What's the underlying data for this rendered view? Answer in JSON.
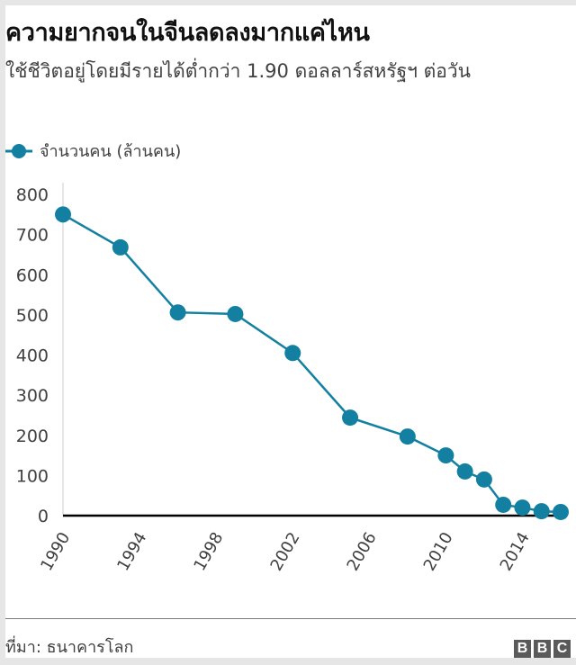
{
  "header": {
    "title": "ความยากจนในจีนลดลงมากแค่ไหน",
    "subtitle": "ใช้ชีวิตอยู่โดยมีรายได้ต่ำกว่า 1.90 ดอลลาร์สหรัฐฯ ต่อวัน"
  },
  "legend": {
    "label": "จำนวนคน (ล้านคน)",
    "color": "#1380a1"
  },
  "footer": {
    "source": "ที่มา: ธนาคารโลก",
    "logo_letters": [
      "B",
      "B",
      "C"
    ]
  },
  "colors": {
    "line": "#1380a1",
    "axis": "#000000",
    "text": "#404040",
    "title": "#111111"
  },
  "chart_data": {
    "type": "line",
    "title": "ความยากจนในจีนลดลงมากแค่ไหน",
    "subtitle": "ใช้ชีวิตอยู่โดยมีรายได้ต่ำกว่า 1.90 ดอลลาร์สหรัฐฯ ต่อวัน",
    "xlabel": "",
    "ylabel": "",
    "x": [
      1990,
      1993,
      1996,
      1999,
      2002,
      2005,
      2008,
      2010,
      2011,
      2012,
      2013,
      2014,
      2015,
      2016
    ],
    "series": [
      {
        "name": "จำนวนคน (ล้านคน)",
        "values": [
          750,
          668,
          506,
          502,
          405,
          244,
          197,
          150,
          110,
          90,
          27,
          20,
          11,
          9
        ]
      }
    ],
    "y_ticks": [
      0,
      100,
      200,
      300,
      400,
      500,
      600,
      700,
      800
    ],
    "x_ticks": [
      1990,
      1994,
      1998,
      2002,
      2006,
      2010,
      2014
    ],
    "ylim": [
      0,
      800
    ],
    "xlim": [
      1990,
      2016
    ],
    "grid": false,
    "legend_position": "top-left",
    "source": "ที่มา: ธนาคารโลก"
  }
}
